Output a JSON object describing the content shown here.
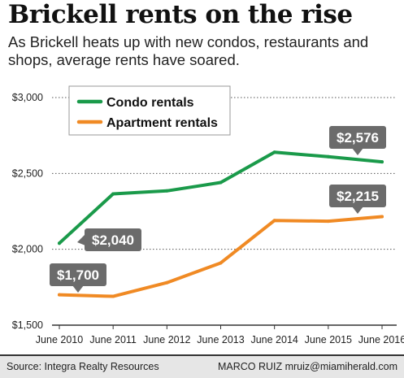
{
  "title": "Brickell rents on the rise",
  "subtitle": "As Brickell heats up with new condos, restaurants and shops, average rents have soared.",
  "chart_data": {
    "type": "line",
    "categories": [
      "June 2010",
      "June 2011",
      "June 2012",
      "June 2013",
      "June 2014",
      "June 2015",
      "June 2016"
    ],
    "series": [
      {
        "name": "Condo rentals",
        "color": "#1a9a4a",
        "values": [
          2040,
          2365,
          2385,
          2440,
          2640,
          2610,
          2576
        ]
      },
      {
        "name": "Apartment rentals",
        "color": "#f08a24",
        "values": [
          1700,
          1690,
          1780,
          1910,
          2190,
          2185,
          2215
        ]
      }
    ],
    "ylim": [
      1500,
      3000
    ],
    "yticks": [
      1500,
      2000,
      2500,
      3000
    ],
    "ytick_labels": [
      "$1,500",
      "$2,000",
      "$2,500",
      "$3,000"
    ],
    "grid": true,
    "legend": "top-left",
    "annotations": [
      {
        "series": 0,
        "point": 0,
        "label": "$2,040"
      },
      {
        "series": 0,
        "point": 6,
        "label": "$2,576"
      },
      {
        "series": 1,
        "point": 0,
        "label": "$1,700"
      },
      {
        "series": 1,
        "point": 6,
        "label": "$2,215"
      }
    ],
    "callout_color": "#6b6b6b"
  },
  "footer": {
    "source": "Source: Integra Realty Resources",
    "credit": "MARCO RUIZ mruiz@miamiherald.com"
  }
}
